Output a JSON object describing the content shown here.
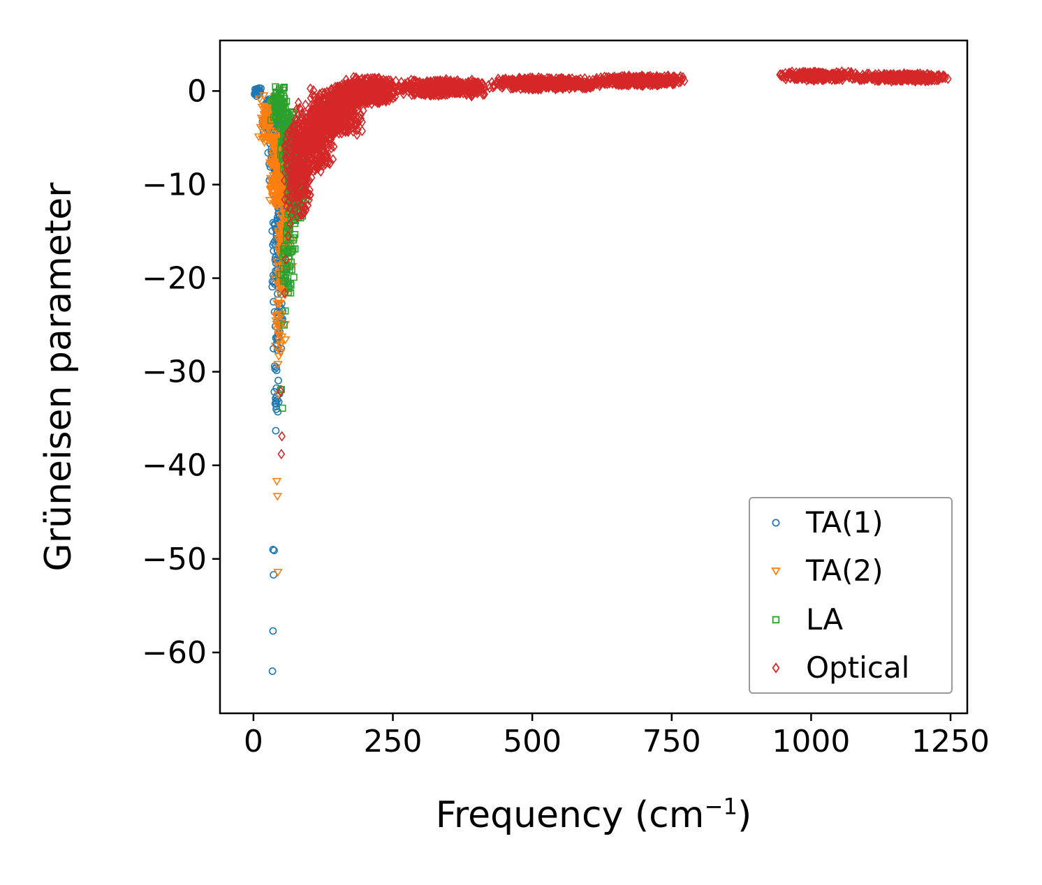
{
  "chart_data": {
    "type": "scatter",
    "title": "",
    "xlabel": "Frequency (cm⁻¹)",
    "xlabel_parts": {
      "prefix": "Frequency (cm",
      "superscript": "−1",
      "suffix": ")"
    },
    "ylabel": "Grüneisen parameter",
    "xlim": [
      -60,
      1280
    ],
    "ylim": [
      -66.5,
      5.4
    ],
    "grid": false,
    "legend_position": "lower right",
    "xticks": {
      "values": [
        0,
        250,
        500,
        750,
        1000,
        1250
      ],
      "labels": [
        "0",
        "250",
        "500",
        "750",
        "1000",
        "1250"
      ]
    },
    "yticks": {
      "values": [
        0,
        -10,
        -20,
        -30,
        -40,
        -50,
        -60
      ],
      "labels": [
        "0",
        "−10",
        "−20",
        "−30",
        "−40",
        "−50",
        "−60"
      ]
    },
    "series": [
      {
        "name": "TA(1)",
        "marker": "circle",
        "color": "#1f77b4",
        "clusters": [
          [
            0,
            15,
            -0.8,
            0.4,
            25
          ],
          [
            15,
            45,
            -5,
            -0.5,
            80
          ],
          [
            25,
            55,
            -11,
            -2,
            150
          ],
          [
            40,
            80,
            -15,
            -5,
            260
          ],
          [
            30,
            62,
            -22,
            -11,
            85
          ],
          [
            33,
            56,
            -30,
            -20,
            35
          ],
          [
            35,
            50,
            -36,
            -29,
            14
          ]
        ],
        "points": [
          [
            34,
            -62
          ],
          [
            35,
            -57.7
          ],
          [
            36,
            -51.7
          ],
          [
            35,
            -49
          ],
          [
            37,
            -49.1
          ],
          [
            40,
            -36.3
          ],
          [
            41,
            -34
          ],
          [
            39,
            -33.4
          ],
          [
            42,
            -32.6
          ],
          [
            38,
            -29.4
          ]
        ]
      },
      {
        "name": "TA(2)",
        "marker": "triangle-down",
        "color": "#ff7f0e",
        "clusters": [
          [
            8,
            40,
            -6,
            -0.3,
            70
          ],
          [
            28,
            62,
            -13,
            -3,
            160
          ],
          [
            40,
            72,
            -20,
            -9,
            120
          ],
          [
            38,
            58,
            -29,
            -17,
            45
          ]
        ],
        "points": [
          [
            43,
            -43.3
          ],
          [
            42,
            -41.7
          ],
          [
            44,
            -51.4
          ],
          [
            45,
            -32.4
          ],
          [
            44,
            -29.2
          ],
          [
            46,
            -26.6
          ],
          [
            41,
            -24.1
          ]
        ]
      },
      {
        "name": "LA",
        "marker": "square",
        "color": "#2ca02c",
        "clusters": [
          [
            30,
            62,
            -4,
            1,
            90
          ],
          [
            45,
            80,
            -9,
            -2,
            160
          ],
          [
            58,
            95,
            -15,
            -6,
            150
          ],
          [
            50,
            76,
            -22,
            -12,
            50
          ]
        ],
        "points": [
          [
            52,
            -33.9
          ],
          [
            50,
            -31.9
          ],
          [
            55,
            -25
          ],
          [
            57,
            -23.5
          ],
          [
            48,
            -19.6
          ],
          [
            60,
            -17.1
          ]
        ]
      },
      {
        "name": "Optical",
        "marker": "diamond",
        "color": "#d62728",
        "clusters": [
          [
            55,
            110,
            -14,
            -3,
            240
          ],
          [
            70,
            150,
            -9,
            -1,
            380
          ],
          [
            100,
            200,
            -5,
            0.8,
            480
          ],
          [
            150,
            260,
            -1.5,
            1.6,
            450
          ],
          [
            250,
            430,
            -0.6,
            1.3,
            520
          ],
          [
            420,
            630,
            0.1,
            1.5,
            520
          ],
          [
            610,
            780,
            0.5,
            1.7,
            380
          ],
          [
            930,
            1085,
            1.1,
            2.1,
            300
          ],
          [
            1070,
            1250,
            1.0,
            1.9,
            320
          ]
        ],
        "points": [
          [
            50,
            -38.8
          ],
          [
            51,
            -36.9
          ],
          [
            49,
            -32.1
          ],
          [
            56,
            -21.6
          ],
          [
            58,
            -18
          ],
          [
            62,
            -15.5
          ],
          [
            66,
            -14.2
          ]
        ]
      }
    ]
  }
}
